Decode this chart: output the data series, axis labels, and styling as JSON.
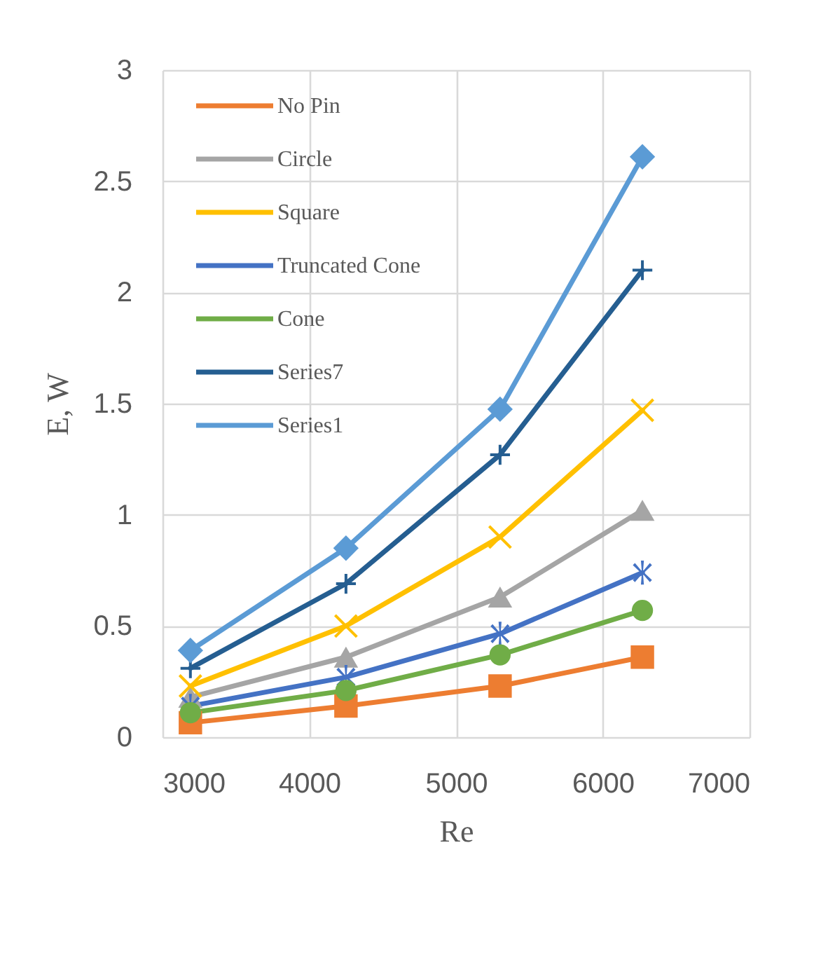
{
  "chart_data": {
    "type": "line",
    "xlabel": "Re",
    "ylabel": "E, W",
    "x": [
      3190,
      4250,
      5300,
      6270
    ],
    "series": [
      {
        "name": "No Pin",
        "color": "#ed7d31",
        "marker": "square",
        "values": [
          0.065,
          0.14,
          0.23,
          0.36
        ]
      },
      {
        "name": "Circle",
        "color": "#a5a5a5",
        "marker": "triangle",
        "values": [
          0.18,
          0.36,
          0.63,
          1.02
        ]
      },
      {
        "name": "Square",
        "color": "#ffc000",
        "marker": "cross",
        "values": [
          0.23,
          0.5,
          0.9,
          1.47
        ]
      },
      {
        "name": "Truncated Cone",
        "color": "#4472c4",
        "marker": "star",
        "values": [
          0.14,
          0.27,
          0.465,
          0.74
        ]
      },
      {
        "name": "Cone",
        "color": "#70ad47",
        "marker": "circle",
        "values": [
          0.11,
          0.21,
          0.37,
          0.57
        ]
      },
      {
        "name": "Series7",
        "color": "#255e91",
        "marker": "plus",
        "values": [
          0.31,
          0.69,
          1.27,
          2.1
        ]
      },
      {
        "name": "Series1",
        "color": "#5b9bd5",
        "marker": "diamond",
        "values": [
          0.39,
          0.85,
          1.475,
          2.61
        ]
      }
    ],
    "xlim": [
      3000,
      7000
    ],
    "xticks": [
      3000,
      4000,
      5000,
      6000,
      7000
    ],
    "ylim": [
      0,
      3
    ],
    "yticks": [
      0,
      0.5,
      1,
      1.5,
      2,
      2.5,
      3
    ],
    "grid": true,
    "legend": "top left"
  }
}
